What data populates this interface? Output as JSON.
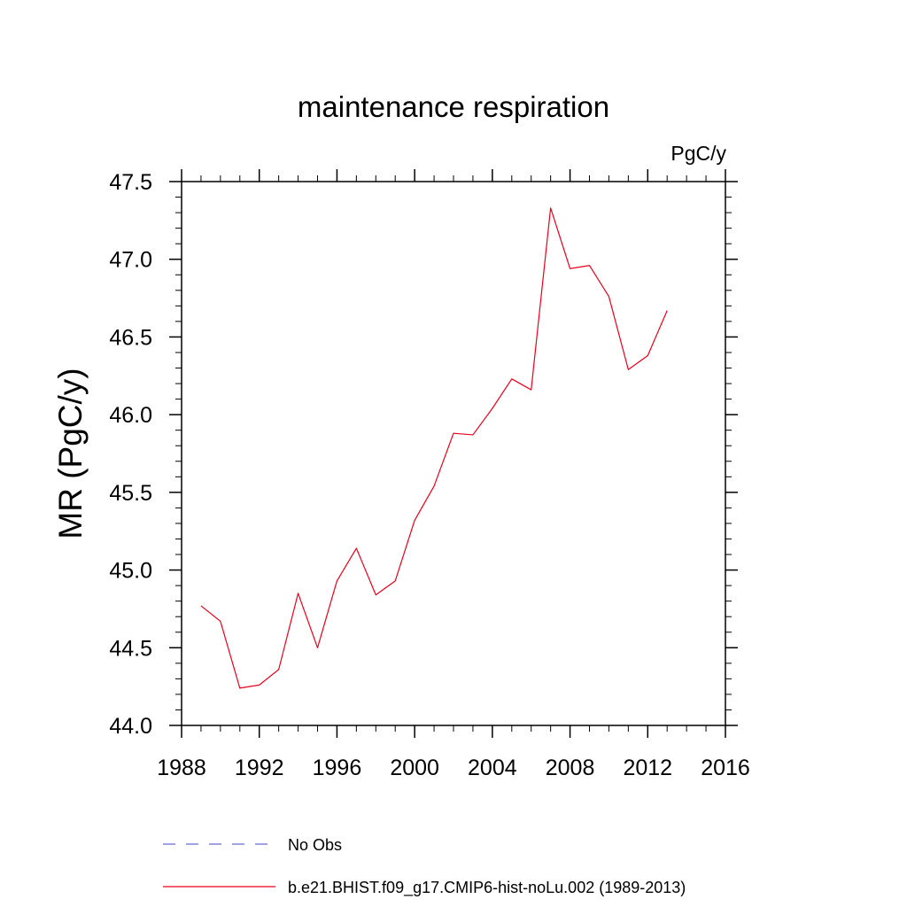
{
  "chart_data": {
    "type": "line",
    "title": "maintenance respiration",
    "units_label": "PgC/y",
    "ylabel": "MR  (PgC/y)",
    "xlabel": "",
    "xlim": [
      1988,
      2016
    ],
    "ylim": [
      44.0,
      47.5
    ],
    "x_ticks": [
      1988,
      1992,
      1996,
      2000,
      2004,
      2008,
      2012,
      2016
    ],
    "y_ticks": [
      "44.0",
      "44.5",
      "45.0",
      "45.5",
      "46.0",
      "46.5",
      "47.0",
      "47.5"
    ],
    "x_minor_step": 1,
    "y_minor_step": 0.1,
    "grid": false,
    "legend_position": "bottom",
    "series": [
      {
        "name": "No Obs",
        "color": "#6a6ad0",
        "style": "dashed",
        "x": [],
        "values": []
      },
      {
        "name": "b.e21.BHIST.f09_g17.CMIP6-hist-noLu.002 (1989-2013)",
        "color": "#e8001c",
        "style": "solid",
        "x": [
          1989,
          1990,
          1991,
          1992,
          1993,
          1994,
          1995,
          1996,
          1997,
          1998,
          1999,
          2000,
          2001,
          2002,
          2003,
          2004,
          2005,
          2006,
          2007,
          2008,
          2009,
          2010,
          2011,
          2012,
          2013
        ],
        "values": [
          44.77,
          44.67,
          44.24,
          44.26,
          44.36,
          44.85,
          44.5,
          44.93,
          45.14,
          44.84,
          44.93,
          45.32,
          45.54,
          45.88,
          45.87,
          46.04,
          46.23,
          46.16,
          47.33,
          46.94,
          46.96,
          46.76,
          46.29,
          46.38,
          46.67
        ]
      }
    ]
  }
}
